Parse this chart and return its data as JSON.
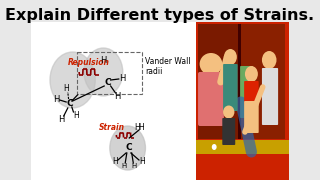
{
  "title": "Explain Different types of Strains.",
  "title_fontsize": 11.5,
  "title_fontweight": "bold",
  "bg_color": "#e8e8e8",
  "white_bg": "#ffffff",
  "repulsion_label": "Repulsion",
  "strain_label": "Strain",
  "vander_label": "Vander Wall\nradii",
  "label_color_red": "#cc2200",
  "circle_color": "#c0c0c0",
  "circle_alpha": 0.6,
  "right_panel_colors": {
    "bg_red": "#cc2200",
    "door_dark": "#8B4513",
    "door_divider": "#555555",
    "yellow_stripe": "#d4a800",
    "teal": "#3a8a7a",
    "pink": "#e07070",
    "skin": "#f4c080",
    "dark": "#222222",
    "white_shirt": "#dddddd",
    "green": "#6aaa60",
    "blue": "#4488cc",
    "red_accent": "#dd2200"
  }
}
